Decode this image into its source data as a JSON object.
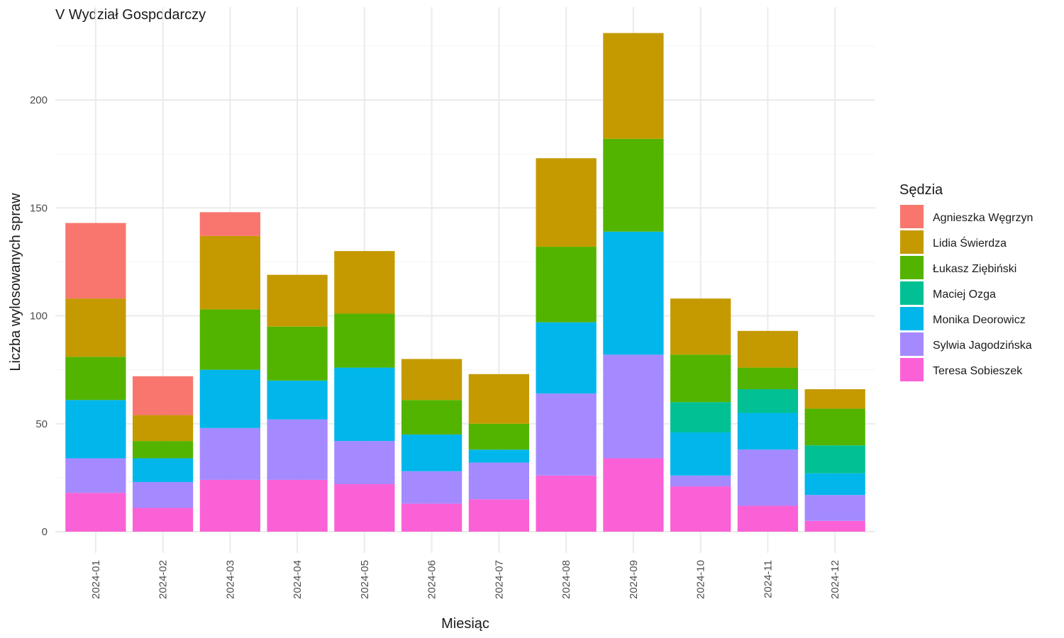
{
  "chart_data": {
    "type": "bar",
    "stacked": true,
    "title": "V Wydział Gospodarczy",
    "xlabel": "Miesiąc",
    "ylabel": "Liczba wylosowanych spraw",
    "ylim": [
      0,
      240
    ],
    "yticks": [
      0,
      50,
      100,
      150,
      200
    ],
    "grid": true,
    "legend_position": "right",
    "legend_title": "Sędzia",
    "categories": [
      "2024-01",
      "2024-02",
      "2024-03",
      "2024-04",
      "2024-05",
      "2024-06",
      "2024-07",
      "2024-08",
      "2024-09",
      "2024-10",
      "2024-11",
      "2024-12"
    ],
    "series": [
      {
        "name": "Teresa Sobieszek",
        "color": "#FB61D7",
        "values": [
          18,
          11,
          24,
          24,
          22,
          13,
          15,
          26,
          34,
          21,
          12,
          5
        ]
      },
      {
        "name": "Sylwia Jagodzińska",
        "color": "#A58AFF",
        "values": [
          16,
          12,
          24,
          28,
          20,
          15,
          17,
          38,
          48,
          5,
          26,
          12
        ]
      },
      {
        "name": "Monika Deorowicz",
        "color": "#00B6EB",
        "values": [
          27,
          11,
          27,
          18,
          34,
          17,
          6,
          33,
          57,
          20,
          17,
          10
        ]
      },
      {
        "name": "Maciej Ozga",
        "color": "#00C094",
        "values": [
          0,
          0,
          0,
          0,
          0,
          0,
          0,
          0,
          0,
          14,
          11,
          13
        ]
      },
      {
        "name": "Łukasz Ziębiński",
        "color": "#53B400",
        "values": [
          20,
          8,
          28,
          25,
          25,
          16,
          12,
          35,
          43,
          22,
          10,
          17
        ]
      },
      {
        "name": "Lidia Świerdza",
        "color": "#C49A00",
        "values": [
          27,
          12,
          34,
          24,
          29,
          19,
          23,
          41,
          49,
          26,
          17,
          9
        ]
      },
      {
        "name": "Agnieszka Węgrzyn",
        "color": "#F8766D",
        "values": [
          35,
          18,
          11,
          0,
          0,
          0,
          0,
          0,
          0,
          0,
          0,
          0
        ]
      }
    ],
    "legend_order": [
      "Agnieszka Węgrzyn",
      "Lidia Świerdza",
      "Łukasz Ziębiński",
      "Maciej Ozga",
      "Monika Deorowicz",
      "Sylwia Jagodzińska",
      "Teresa Sobieszek"
    ]
  }
}
